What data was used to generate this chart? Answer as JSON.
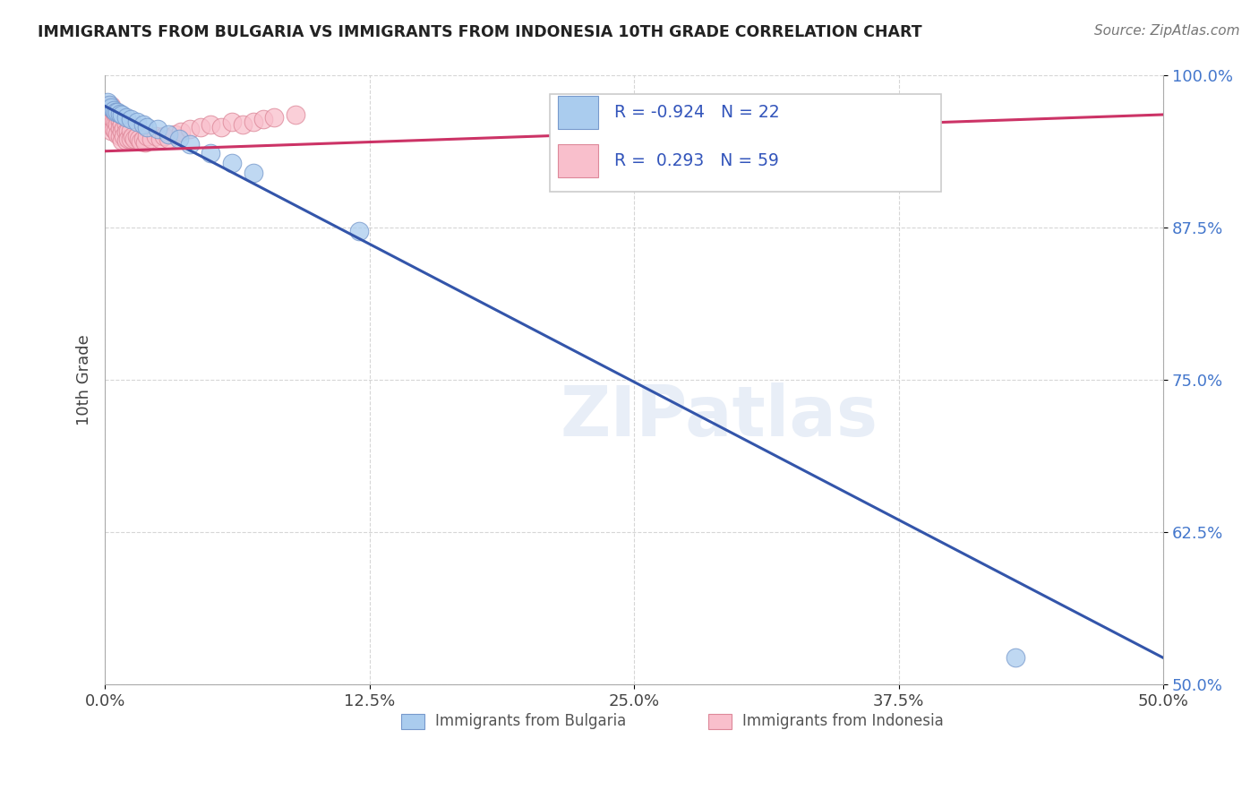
{
  "title": "IMMIGRANTS FROM BULGARIA VS IMMIGRANTS FROM INDONESIA 10TH GRADE CORRELATION CHART",
  "source_text": "Source: ZipAtlas.com",
  "ylabel": "10th Grade",
  "xlim": [
    0.0,
    0.5
  ],
  "ylim": [
    0.5,
    1.0
  ],
  "xtick_labels": [
    "0.0%",
    "12.5%",
    "25.0%",
    "37.5%",
    "50.0%"
  ],
  "xtick_vals": [
    0.0,
    0.125,
    0.25,
    0.375,
    0.5
  ],
  "ytick_labels": [
    "50.0%",
    "62.5%",
    "75.0%",
    "87.5%",
    "100.0%"
  ],
  "ytick_vals": [
    0.5,
    0.625,
    0.75,
    0.875,
    1.0
  ],
  "bulgaria_color": "#aaccee",
  "indonesia_color": "#f9bfcc",
  "bulgaria_edge": "#7799cc",
  "indonesia_edge": "#dd8899",
  "trend_bulgaria_color": "#3355aa",
  "trend_indonesia_color": "#cc3366",
  "R_bulgaria": -0.924,
  "N_bulgaria": 22,
  "R_indonesia": 0.293,
  "N_indonesia": 59,
  "watermark": "ZIPatlas",
  "legend_label_bulgaria": "Immigrants from Bulgaria",
  "legend_label_indonesia": "Immigrants from Indonesia",
  "bulgaria_x": [
    0.001,
    0.002,
    0.003,
    0.004,
    0.005,
    0.006,
    0.007,
    0.008,
    0.01,
    0.012,
    0.015,
    0.018,
    0.02,
    0.025,
    0.03,
    0.035,
    0.04,
    0.05,
    0.06,
    0.07,
    0.12,
    0.43
  ],
  "bulgaria_y": [
    0.978,
    0.976,
    0.974,
    0.972,
    0.97,
    0.97,
    0.969,
    0.968,
    0.966,
    0.964,
    0.962,
    0.96,
    0.958,
    0.956,
    0.952,
    0.948,
    0.944,
    0.936,
    0.928,
    0.92,
    0.872,
    0.522
  ],
  "indonesia_x": [
    0.001,
    0.001,
    0.001,
    0.002,
    0.002,
    0.002,
    0.003,
    0.003,
    0.003,
    0.003,
    0.004,
    0.004,
    0.004,
    0.005,
    0.005,
    0.005,
    0.006,
    0.006,
    0.006,
    0.007,
    0.007,
    0.007,
    0.008,
    0.008,
    0.008,
    0.009,
    0.009,
    0.01,
    0.01,
    0.01,
    0.011,
    0.011,
    0.012,
    0.012,
    0.013,
    0.014,
    0.015,
    0.016,
    0.017,
    0.018,
    0.019,
    0.02,
    0.022,
    0.024,
    0.026,
    0.028,
    0.03,
    0.033,
    0.036,
    0.04,
    0.045,
    0.05,
    0.055,
    0.06,
    0.065,
    0.07,
    0.075,
    0.08,
    0.09
  ],
  "indonesia_y": [
    0.975,
    0.97,
    0.965,
    0.972,
    0.968,
    0.96,
    0.975,
    0.968,
    0.962,
    0.955,
    0.97,
    0.963,
    0.956,
    0.968,
    0.962,
    0.955,
    0.966,
    0.96,
    0.952,
    0.963,
    0.957,
    0.95,
    0.96,
    0.954,
    0.947,
    0.957,
    0.95,
    0.96,
    0.954,
    0.947,
    0.955,
    0.948,
    0.955,
    0.948,
    0.95,
    0.948,
    0.95,
    0.948,
    0.946,
    0.948,
    0.945,
    0.95,
    0.948,
    0.95,
    0.948,
    0.95,
    0.948,
    0.952,
    0.954,
    0.956,
    0.958,
    0.96,
    0.958,
    0.962,
    0.96,
    0.962,
    0.964,
    0.966,
    0.968
  ],
  "bg_trend_x": [
    0.0,
    0.5
  ],
  "bg_trend_y": [
    0.975,
    0.522
  ],
  "id_trend_x": [
    0.0,
    0.5
  ],
  "id_trend_y": [
    0.938,
    0.968
  ]
}
